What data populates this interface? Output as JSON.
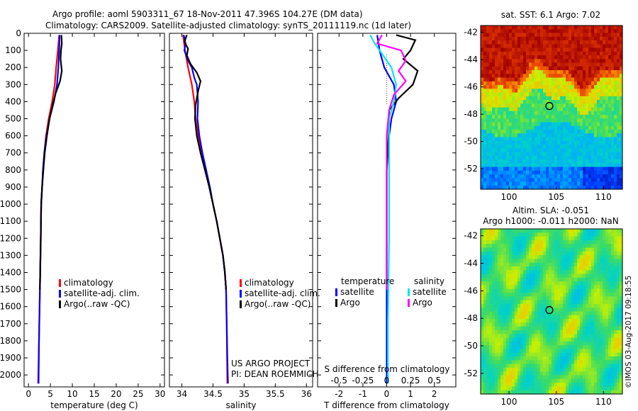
{
  "header": {
    "line1": "Argo profile: aoml 5903311_67 18-Nov-2011 47.396S 104.27E (DM data)",
    "line2": "Climatology: CARS2009. Satellite-adjusted climatology: synTS_20111119.nc (1d later)"
  },
  "credit": "US ARGO PROJECT\nPI: DEAN ROEMMICH",
  "watermark": "©IMOS 03-Aug-2017 09:18:55",
  "colors": {
    "red": "#ff0000",
    "blue": "#0000ff",
    "black": "#000000",
    "cyan": "#00e5ee",
    "magenta": "#ff00ff"
  },
  "chart_data": [
    {
      "type": "line",
      "id": "temperature",
      "xlabel": "temperature (deg C)",
      "ylabel": "",
      "xlim": [
        -1,
        31
      ],
      "ylim": [
        2070,
        0
      ],
      "xticks": [
        0,
        5,
        10,
        15,
        20,
        25,
        30
      ],
      "yticks": [
        0,
        100,
        200,
        300,
        400,
        500,
        600,
        700,
        800,
        900,
        1000,
        1100,
        1200,
        1300,
        1400,
        1500,
        1600,
        1700,
        1800,
        1900,
        2000
      ],
      "legend": [
        "climatology",
        "satellite-adj. clim.",
        "Argo(..raw -QC)"
      ],
      "series": [
        {
          "name": "climatology",
          "color": "red",
          "points": [
            [
              7.0,
              10
            ],
            [
              6.7,
              100
            ],
            [
              6.3,
              200
            ],
            [
              6.0,
              300
            ],
            [
              5.4,
              400
            ],
            [
              4.6,
              500
            ],
            [
              4.0,
              600
            ],
            [
              3.6,
              700
            ],
            [
              3.3,
              800
            ],
            [
              3.1,
              900
            ],
            [
              2.9,
              1000
            ],
            [
              2.8,
              1200
            ],
            [
              2.6,
              1500
            ],
            [
              2.4,
              1800
            ],
            [
              2.2,
              2050
            ]
          ]
        },
        {
          "name": "satellite-adj. clim.",
          "color": "blue",
          "points": [
            [
              7.1,
              10
            ],
            [
              7.0,
              100
            ],
            [
              6.8,
              200
            ],
            [
              6.5,
              300
            ],
            [
              5.8,
              400
            ],
            [
              4.8,
              500
            ],
            [
              4.1,
              600
            ],
            [
              3.6,
              700
            ],
            [
              3.3,
              800
            ],
            [
              3.1,
              900
            ],
            [
              2.9,
              1000
            ],
            [
              2.8,
              1200
            ],
            [
              2.6,
              1500
            ],
            [
              2.4,
              1800
            ],
            [
              2.3,
              2050
            ]
          ]
        },
        {
          "name": "Argo(..raw -QC)",
          "color": "black",
          "points": [
            [
              7.5,
              10
            ],
            [
              7.6,
              60
            ],
            [
              7.4,
              100
            ],
            [
              7.3,
              150
            ],
            [
              7.6,
              220
            ],
            [
              7.2,
              280
            ],
            [
              6.2,
              350
            ],
            [
              5.5,
              420
            ],
            [
              4.8,
              500
            ],
            [
              4.2,
              600
            ],
            [
              3.7,
              700
            ],
            [
              3.4,
              800
            ],
            [
              3.1,
              900
            ],
            [
              2.9,
              1000
            ],
            [
              2.8,
              1200
            ],
            [
              2.6,
              1500
            ]
          ]
        }
      ]
    },
    {
      "type": "line",
      "id": "salinity",
      "xlabel": "salinity",
      "ylabel": "",
      "xlim": [
        33.8,
        36.1
      ],
      "ylim": [
        2070,
        0
      ],
      "xticks": [
        34,
        34.5,
        35,
        35.5,
        36
      ],
      "legend": [
        "climatology",
        "satellite-adj. clim.",
        "Argo(..raw -QC)"
      ],
      "series": [
        {
          "name": "climatology",
          "color": "red",
          "points": [
            [
              34.02,
              10
            ],
            [
              34.05,
              100
            ],
            [
              34.1,
              200
            ],
            [
              34.16,
              300
            ],
            [
              34.2,
              400
            ],
            [
              34.22,
              500
            ],
            [
              34.26,
              600
            ],
            [
              34.31,
              700
            ],
            [
              34.38,
              800
            ],
            [
              34.44,
              900
            ],
            [
              34.5,
              1000
            ],
            [
              34.56,
              1100
            ],
            [
              34.61,
              1200
            ],
            [
              34.66,
              1300
            ],
            [
              34.69,
              1400
            ],
            [
              34.71,
              1500
            ],
            [
              34.72,
              1700
            ],
            [
              34.73,
              2050
            ]
          ]
        },
        {
          "name": "satellite-adj. clim.",
          "color": "blue",
          "points": [
            [
              34.03,
              10
            ],
            [
              34.06,
              60
            ],
            [
              34.04,
              100
            ],
            [
              34.1,
              160
            ],
            [
              34.16,
              200
            ],
            [
              34.2,
              260
            ],
            [
              34.24,
              300
            ],
            [
              34.26,
              400
            ],
            [
              34.25,
              500
            ],
            [
              34.28,
              600
            ],
            [
              34.33,
              700
            ],
            [
              34.39,
              800
            ],
            [
              34.45,
              900
            ],
            [
              34.5,
              1000
            ],
            [
              34.56,
              1100
            ],
            [
              34.61,
              1200
            ],
            [
              34.66,
              1300
            ],
            [
              34.69,
              1400
            ],
            [
              34.71,
              1500
            ],
            [
              34.72,
              1700
            ],
            [
              34.73,
              1900
            ],
            [
              34.74,
              2050
            ]
          ]
        },
        {
          "name": "Argo(..raw -QC)",
          "color": "black",
          "points": [
            [
              34.08,
              10
            ],
            [
              34.04,
              50
            ],
            [
              34.1,
              90
            ],
            [
              34.08,
              130
            ],
            [
              34.14,
              180
            ],
            [
              34.24,
              230
            ],
            [
              34.3,
              280
            ],
            [
              34.26,
              340
            ],
            [
              34.22,
              420
            ],
            [
              34.21,
              500
            ],
            [
              34.24,
              600
            ],
            [
              34.3,
              700
            ],
            [
              34.37,
              800
            ],
            [
              34.44,
              900
            ],
            [
              34.5,
              1000
            ],
            [
              34.56,
              1100
            ],
            [
              34.61,
              1200
            ],
            [
              34.66,
              1300
            ],
            [
              34.69,
              1400
            ],
            [
              34.71,
              1500
            ]
          ]
        }
      ]
    },
    {
      "type": "line",
      "id": "differences",
      "xlabel": "T difference from climatology",
      "xlabel_top": "S difference from climatology",
      "xlim": [
        -2.9,
        2.9
      ],
      "ylim": [
        2070,
        0
      ],
      "xticks": [
        -2,
        -1,
        0,
        1,
        2
      ],
      "xticks_top": [
        "-0.5",
        "-0.25",
        "0",
        "0.25",
        "0.5"
      ],
      "xticks_top_pos": [
        -2,
        -1,
        0,
        1,
        2
      ],
      "legend_left_title": "temperature",
      "legend_right_title": "salinity",
      "legend": [
        "satellite",
        "Argo",
        "satellite",
        "Argo"
      ],
      "series": [
        {
          "name": "temperature satellite",
          "color": "blue",
          "points": [
            [
              -0.4,
              10
            ],
            [
              -0.3,
              100
            ],
            [
              -0.1,
              200
            ],
            [
              0.3,
              300
            ],
            [
              0.4,
              400
            ],
            [
              0.2,
              500
            ],
            [
              0.1,
              600
            ],
            [
              0.0,
              800
            ],
            [
              0.0,
              1000
            ],
            [
              0.0,
              1500
            ],
            [
              0.0,
              2050
            ]
          ]
        },
        {
          "name": "temperature Argo",
          "color": "black",
          "points": [
            [
              0.4,
              10
            ],
            [
              1.2,
              40
            ],
            [
              1.0,
              100
            ],
            [
              0.7,
              150
            ],
            [
              1.3,
              220
            ],
            [
              1.1,
              300
            ],
            [
              0.5,
              380
            ],
            [
              0.1,
              450
            ],
            [
              0.1,
              550
            ],
            [
              0.0,
              800
            ],
            [
              0.0,
              1000
            ],
            [
              0.0,
              1500
            ]
          ]
        },
        {
          "name": "salinity satellite",
          "color": "cyan",
          "points": [
            [
              -0.7,
              10
            ],
            [
              -0.5,
              60
            ],
            [
              -0.2,
              120
            ],
            [
              0.2,
              200
            ],
            [
              0.4,
              300
            ],
            [
              0.3,
              400
            ],
            [
              0.1,
              500
            ],
            [
              0.1,
              800
            ],
            [
              0.1,
              1200
            ],
            [
              0.05,
              1700
            ],
            [
              0.05,
              2050
            ]
          ]
        },
        {
          "name": "salinity Argo",
          "color": "magenta",
          "points": [
            [
              -0.2,
              10
            ],
            [
              -0.4,
              60
            ],
            [
              0.6,
              100
            ],
            [
              0.8,
              160
            ],
            [
              0.5,
              220
            ],
            [
              0.8,
              280
            ],
            [
              0.3,
              360
            ],
            [
              0.1,
              450
            ],
            [
              0.0,
              600
            ],
            [
              0.0,
              900
            ],
            [
              0.0,
              1300
            ],
            [
              0.0,
              1500
            ]
          ]
        }
      ]
    },
    {
      "type": "heatmap",
      "id": "sst_map",
      "title": "sat. SST: 6.1  Argo: 7.02",
      "xlim": [
        97,
        112
      ],
      "ylim": [
        -53.5,
        -41.5
      ],
      "xticks": [
        100,
        105,
        110
      ],
      "yticks": [
        -42,
        -44,
        -46,
        -48,
        -50,
        -52
      ],
      "marker": [
        104.27,
        -47.4
      ]
    },
    {
      "type": "heatmap",
      "id": "sla_map",
      "title": "Altim. SLA: -0.051",
      "subtitle": "Argo h1000: -0.011  h2000: NaN",
      "xlim": [
        97,
        112
      ],
      "ylim": [
        -53.5,
        -41.5
      ],
      "xticks": [
        100,
        105,
        110
      ],
      "yticks": [
        -42,
        -44,
        -46,
        -48,
        -50,
        -52
      ],
      "marker": [
        104.27,
        -47.4
      ]
    }
  ]
}
